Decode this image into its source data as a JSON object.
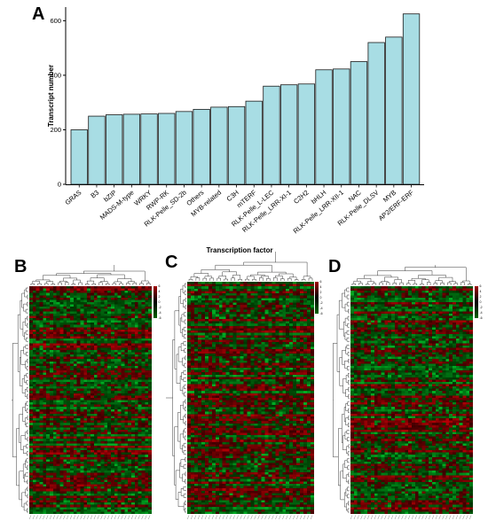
{
  "panels": {
    "a": "A",
    "b": "B",
    "c": "C",
    "d": "D"
  },
  "chart_data": [
    {
      "type": "bar",
      "xlabel": "Transcription factor",
      "ylabel": "Transcript number",
      "categories": [
        "GRAS",
        "B3",
        "bZIP",
        "MADS-M-type",
        "WRKY",
        "RWP-RK",
        "RLK-Pelle_SD-2b",
        "Others",
        "MYB-related",
        "C3H",
        "mTERF",
        "RLK-Pelle_L-LEC",
        "RLK-Pelle_LRR-XI-1",
        "C2H2",
        "bHLH",
        "RLK-Pelle_LRR-XII-1",
        "NAC",
        "RLK-Pelle_DLSV",
        "MYB",
        "AP2/ERF-ERF"
      ],
      "values": [
        200,
        250,
        255,
        257,
        258,
        260,
        267,
        275,
        283,
        285,
        305,
        360,
        365,
        368,
        420,
        423,
        450,
        520,
        540,
        625
      ],
      "ylim": [
        0,
        650
      ],
      "yticks": [
        0,
        200,
        400,
        600
      ],
      "bar_color": "#a8dde4",
      "grid": false
    },
    {
      "type": "heatmap",
      "colormap": [
        "#006400",
        "#000000",
        "#a00000"
      ],
      "scale_ticks": [
        "6",
        "4",
        "2",
        "0",
        "-2",
        "-4",
        "-6"
      ]
    },
    {
      "type": "heatmap",
      "colormap": [
        "#006400",
        "#000000",
        "#a00000"
      ],
      "scale_ticks": [
        "6",
        "4",
        "2",
        "0",
        "-2",
        "-4",
        "-6"
      ]
    },
    {
      "type": "heatmap",
      "colormap": [
        "#006400",
        "#000000",
        "#a00000"
      ],
      "scale_ticks": [
        "6",
        "4",
        "2",
        "0",
        "-2",
        "-4",
        "-6"
      ]
    }
  ]
}
